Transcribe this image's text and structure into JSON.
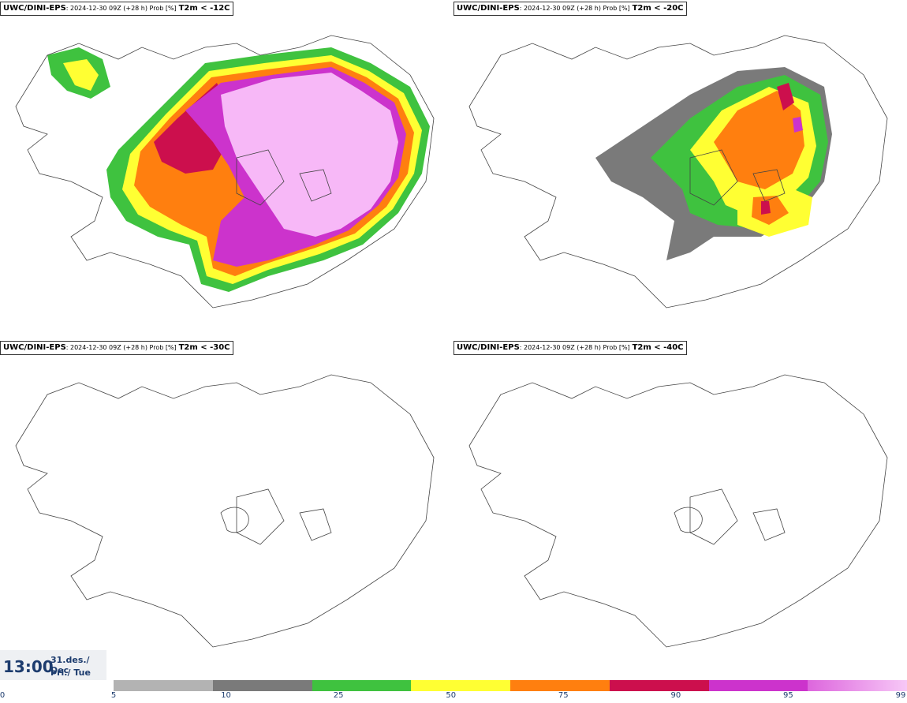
{
  "panels": [
    {
      "source": "UWC/DINI-EPS",
      "meta": ": 2024-12-30 09Z (+28 h) Prob [%]",
      "threshold": "T2m < -12C"
    },
    {
      "source": "UWC/DINI-EPS",
      "meta": ": 2024-12-30 09Z (+28 h) Prob [%]",
      "threshold": "T2m < -20C"
    },
    {
      "source": "UWC/DINI-EPS",
      "meta": ": 2024-12-30 09Z (+28 h) Prob [%]",
      "threshold": "T2m < -30C"
    },
    {
      "source": "UWC/DINI-EPS",
      "meta": ": 2024-12-30 09Z (+28 h) Prob [%]",
      "threshold": "T2m < -40C"
    }
  ],
  "time_box": {
    "time": "13:00",
    "date": "31.des./ Dec",
    "weekday": "Þri./ Tue"
  },
  "colorbar": {
    "ticks": [
      "0",
      "5",
      "10",
      "25",
      "50",
      "75",
      "90",
      "95",
      "99"
    ],
    "colors": [
      "#b3b3b3",
      "#7a7a7a",
      "#3fc23f",
      "#ffff33",
      "#ff7f0f",
      "#cc0f4d",
      "#cc33cc",
      "#f7b8f7"
    ]
  }
}
